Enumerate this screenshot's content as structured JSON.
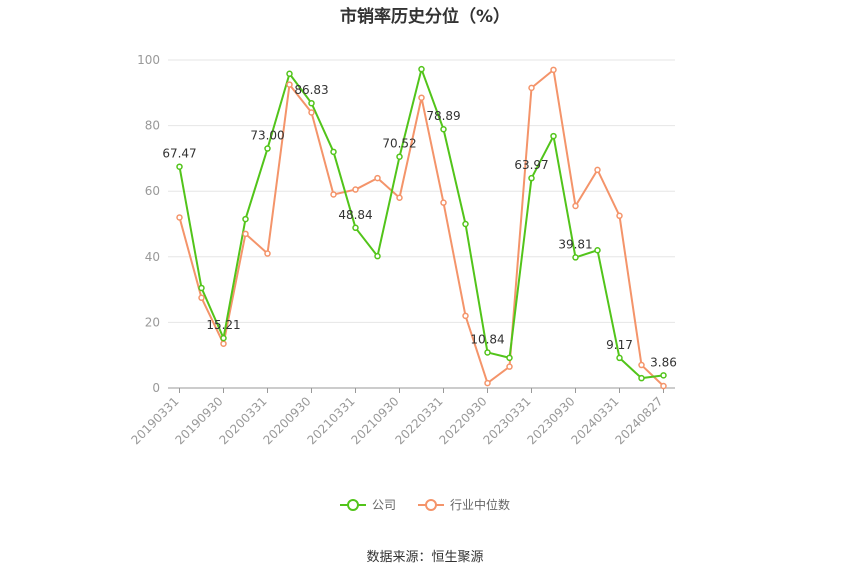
{
  "chart_data": {
    "type": "line",
    "title": "市销率历史分位（%）",
    "source": "数据来源：恒生聚源",
    "ylim": [
      0,
      100
    ],
    "yticks": [
      0,
      20,
      40,
      60,
      80,
      100
    ],
    "x_tick_labels": [
      "20190331",
      "20190930",
      "20200331",
      "20200930",
      "20210331",
      "20210930",
      "20220331",
      "20220930",
      "20230331",
      "20230930",
      "20240331",
      "20240827"
    ],
    "x": [
      "20190331",
      "20190630",
      "20190930",
      "20191231",
      "20200331",
      "20200630",
      "20200930",
      "20201231",
      "20210331",
      "20210630",
      "20210930",
      "20211231",
      "20220331",
      "20220630",
      "20220930",
      "20221231",
      "20230331",
      "20230630",
      "20230930",
      "20231231",
      "20240331",
      "20240630",
      "20240827"
    ],
    "series": [
      {
        "name": "公司",
        "color": "#52c41a",
        "values": [
          67.47,
          30.5,
          15.21,
          51.5,
          73.0,
          95.8,
          86.83,
          72.0,
          48.84,
          40.2,
          70.52,
          97.2,
          78.89,
          50.0,
          10.84,
          9.2,
          63.97,
          76.8,
          39.81,
          42.0,
          9.17,
          3.0,
          3.86
        ],
        "labels": [
          "67.47",
          null,
          "15.21",
          null,
          "73.00",
          null,
          "86.83",
          null,
          "48.84",
          null,
          "70.52",
          null,
          "78.89",
          null,
          "10.84",
          null,
          "63.97",
          null,
          "39.81",
          null,
          "9.17",
          null,
          "3.86"
        ]
      },
      {
        "name": "行业中位数",
        "color": "#f4946a",
        "values": [
          52.0,
          27.5,
          13.5,
          47.0,
          41.0,
          92.5,
          84.0,
          59.0,
          60.5,
          64.0,
          58.0,
          88.5,
          56.5,
          22.0,
          1.5,
          6.5,
          91.5,
          97.0,
          55.5,
          66.5,
          52.5,
          7.0,
          0.6
        ]
      }
    ],
    "grid": true,
    "legend": "bottom-center"
  }
}
